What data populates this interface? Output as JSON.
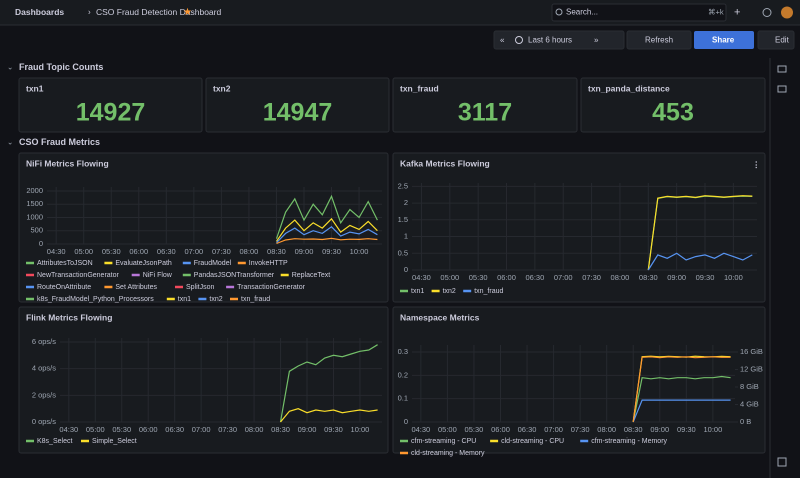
{
  "header": {
    "breadcrumb": [
      "Dashboards",
      "CSO Fraud Detection Dashboard"
    ],
    "search": "Search...",
    "shortcut": "⌘+k"
  },
  "toolbar": {
    "time_range": "Last 6 hours",
    "refresh": "Refresh",
    "share": "Share",
    "edit": "Edit"
  },
  "rows": [
    {
      "title": "Fraud Topic Counts"
    },
    {
      "title": "CSO Fraud Metrics"
    }
  ],
  "stats": [
    {
      "title": "txn1",
      "value": 14927
    },
    {
      "title": "txn2",
      "value": 14947
    },
    {
      "title": "txn_fraud",
      "value": 3117
    },
    {
      "title": "txn_panda_distance",
      "value": 453
    }
  ],
  "panels": [
    {
      "title": "NiFi Metrics Flowing",
      "type": "line",
      "x": [
        "08:30",
        "08:40",
        "08:50",
        "09:00",
        "09:10",
        "09:20",
        "09:30",
        "09:40",
        "09:50",
        "10:00",
        "10:10",
        "10:20"
      ],
      "xlim": [
        "04:20",
        "10:25"
      ],
      "xticks": [
        "04:30",
        "05:00",
        "05:30",
        "06:00",
        "06:30",
        "07:00",
        "07:30",
        "08:00",
        "08:30",
        "09:00",
        "09:30",
        "10:00"
      ],
      "ylim": [
        0,
        2150
      ],
      "yticks": [
        0,
        500,
        1000,
        1500,
        2000
      ],
      "series": [
        {
          "name": "AttributesToJSON",
          "color": "#73bf69",
          "values": [
            200,
            1200,
            1700,
            900,
            1500,
            1100,
            1800,
            800,
            1300,
            1000,
            1600,
            900
          ]
        },
        {
          "name": "EvaluateJsonPath",
          "color": "#fade2a",
          "values": [
            100,
            600,
            900,
            500,
            800,
            600,
            950,
            450,
            700,
            550,
            850,
            500
          ]
        },
        {
          "name": "FraudModel",
          "color": "#5794f2",
          "values": [
            50,
            400,
            600,
            350,
            500,
            400,
            650,
            300,
            450,
            380,
            550,
            350
          ]
        },
        {
          "name": "InvokeHTTP",
          "color": "#ff9830",
          "values": [
            20,
            150,
            200,
            180,
            190,
            170,
            210,
            160,
            180,
            175,
            200,
            170
          ]
        },
        {
          "name": "NewTransactionGenerator",
          "color": "#f2495c"
        },
        {
          "name": "NiFi Flow",
          "color": "#b877d9"
        },
        {
          "name": "PandasJSONTransformer",
          "color": "#73bf69"
        },
        {
          "name": "ReplaceText",
          "color": "#fade2a"
        },
        {
          "name": "RouteOnAttribute",
          "color": "#5794f2"
        },
        {
          "name": "Set Attributes",
          "color": "#ff9830"
        },
        {
          "name": "SplitJson",
          "color": "#f2495c"
        },
        {
          "name": "TransactionGenerator",
          "color": "#b877d9"
        },
        {
          "name": "k8s_FraudModel_Python_Processors",
          "color": "#73bf69"
        },
        {
          "name": "txn1",
          "color": "#fade2a"
        },
        {
          "name": "txn2",
          "color": "#5794f2"
        },
        {
          "name": "txn_fraud",
          "color": "#ff9830"
        }
      ]
    },
    {
      "title": "Kafka Metrics Flowing",
      "type": "line",
      "x": [
        "08:30",
        "08:40",
        "08:50",
        "09:00",
        "09:10",
        "09:20",
        "09:30",
        "09:40",
        "09:50",
        "10:00",
        "10:10",
        "10:20"
      ],
      "xlim": [
        "04:20",
        "10:25"
      ],
      "xticks": [
        "04:30",
        "05:00",
        "05:30",
        "06:00",
        "06:30",
        "07:00",
        "07:30",
        "08:00",
        "08:30",
        "09:00",
        "09:30",
        "10:00"
      ],
      "ylim": [
        0,
        2.6
      ],
      "yticks": [
        0,
        0.5,
        1,
        1.5,
        2,
        2.5
      ],
      "series": [
        {
          "name": "txn1",
          "color": "#73bf69",
          "values": [
            0,
            2.14,
            2.19,
            2.17,
            2.19,
            2.16,
            2.21,
            2.19,
            2.17,
            2.19,
            2.21,
            2.2
          ]
        },
        {
          "name": "txn2",
          "color": "#fade2a",
          "values": [
            0,
            2.15,
            2.2,
            2.18,
            2.2,
            2.17,
            2.22,
            2.2,
            2.18,
            2.2,
            2.22,
            2.21
          ]
        },
        {
          "name": "txn_fraud",
          "color": "#5794f2",
          "values": [
            0,
            0.45,
            0.35,
            0.5,
            0.3,
            0.4,
            0.45,
            0.35,
            0.5,
            0.4,
            0.3,
            0.45
          ]
        }
      ]
    },
    {
      "title": "Flink Metrics Flowing",
      "type": "line",
      "x": [
        "08:30",
        "08:40",
        "08:50",
        "09:00",
        "09:10",
        "09:20",
        "09:30",
        "09:40",
        "09:50",
        "10:00",
        "10:10",
        "10:20"
      ],
      "xlim": [
        "04:20",
        "10:25"
      ],
      "xticks": [
        "04:30",
        "05:00",
        "05:30",
        "06:00",
        "06:30",
        "07:00",
        "07:30",
        "08:00",
        "08:30",
        "09:00",
        "09:30",
        "10:00"
      ],
      "ylim": [
        0,
        6.3
      ],
      "yticks": [
        {
          "value": 0,
          "label": "0 ops/s"
        },
        {
          "value": 2,
          "label": "2 ops/s"
        },
        {
          "value": 4,
          "label": "4 ops/s"
        },
        {
          "value": 6,
          "label": "6 ops/s"
        }
      ],
      "series": [
        {
          "name": "K8s_Select",
          "color": "#73bf69",
          "values": [
            0,
            3.8,
            4.2,
            4.5,
            4.3,
            4.8,
            5.0,
            4.9,
            5.1,
            5.3,
            5.4,
            5.8
          ]
        },
        {
          "name": "Simple_Select",
          "color": "#fade2a",
          "values": [
            0,
            0.8,
            1.0,
            0.7,
            0.9,
            0.8,
            0.9,
            0.7,
            0.8,
            0.9,
            0.8,
            0.9
          ]
        }
      ]
    },
    {
      "title": "Namespace Metrics",
      "type": "line",
      "x": [
        "08:30",
        "08:40",
        "08:50",
        "09:00",
        "09:10",
        "09:20",
        "09:30",
        "09:40",
        "09:50",
        "10:00",
        "10:10",
        "10:20"
      ],
      "xlim": [
        "04:20",
        "10:25"
      ],
      "xticks": [
        "04:30",
        "05:00",
        "05:30",
        "06:00",
        "06:30",
        "07:00",
        "07:30",
        "08:00",
        "08:30",
        "09:00",
        "09:30",
        "10:00"
      ],
      "ylim": [
        0,
        0.33
      ],
      "yticks": [
        0,
        0.1,
        0.2,
        0.3
      ],
      "y2lim": [
        0,
        17.6
      ],
      "y2ticks": [
        {
          "value": 0,
          "label": "0 B"
        },
        {
          "value": 4,
          "label": "4 GiB"
        },
        {
          "value": 8,
          "label": "8 GiB"
        },
        {
          "value": 12,
          "label": "12 GiB"
        },
        {
          "value": 16,
          "label": "16 GiB"
        }
      ],
      "series": [
        {
          "name": "cfm-streaming - CPU",
          "color": "#73bf69",
          "values": [
            0,
            0.19,
            0.185,
            0.19,
            0.185,
            0.19,
            0.19,
            0.185,
            0.19,
            0.19,
            0.195,
            0.19
          ]
        },
        {
          "name": "cld-streaming - CPU",
          "color": "#fade2a",
          "values": [
            0,
            0.28,
            0.282,
            0.279,
            0.281,
            0.28,
            0.278,
            0.282,
            0.28,
            0.279,
            0.281,
            0.28
          ]
        },
        {
          "name": "cfm-streaming - Memory",
          "color": "#5794f2",
          "axis": "y2",
          "values": [
            0,
            5,
            5,
            5,
            5,
            5,
            5,
            5,
            5,
            5,
            5,
            5
          ]
        },
        {
          "name": "cld-streaming - Memory",
          "color": "#ff9830",
          "axis": "y2",
          "values": [
            0,
            14.8,
            14.9,
            14.7,
            14.9,
            14.8,
            14.9,
            14.7,
            14.8,
            14.9,
            14.8,
            14.8
          ]
        }
      ]
    }
  ]
}
